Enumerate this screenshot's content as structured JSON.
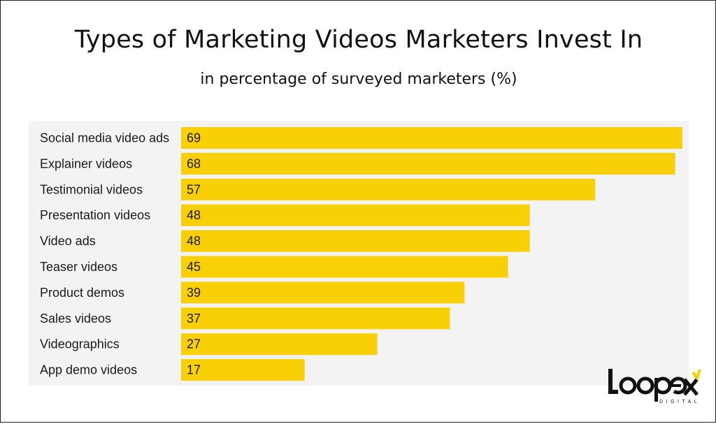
{
  "title": "Types of Marketing Videos Marketers Invest In",
  "subtitle": "in percentage of surveyed marketers (%)",
  "colors": {
    "bar": "#f9cf05",
    "panel": "#f3f3f3",
    "text": "#1a1a1a"
  },
  "chart_data": {
    "type": "bar",
    "orientation": "horizontal",
    "title": "Types of Marketing Videos Marketers Invest In",
    "subtitle": "in percentage of surveyed marketers (%)",
    "categories": [
      "Social media video ads",
      "Explainer videos",
      "Testimonial videos",
      "Presentation videos",
      "Video ads",
      "Teaser videos",
      "Product demos",
      "Sales videos",
      "Videographics",
      "App demo videos"
    ],
    "values": [
      69,
      68,
      57,
      48,
      48,
      45,
      39,
      37,
      27,
      17
    ],
    "xlim": [
      0,
      69
    ],
    "grid": false,
    "legend": "none",
    "data_labels": true
  },
  "logo": {
    "name": "Loopex",
    "sub": "DIGITAL"
  }
}
